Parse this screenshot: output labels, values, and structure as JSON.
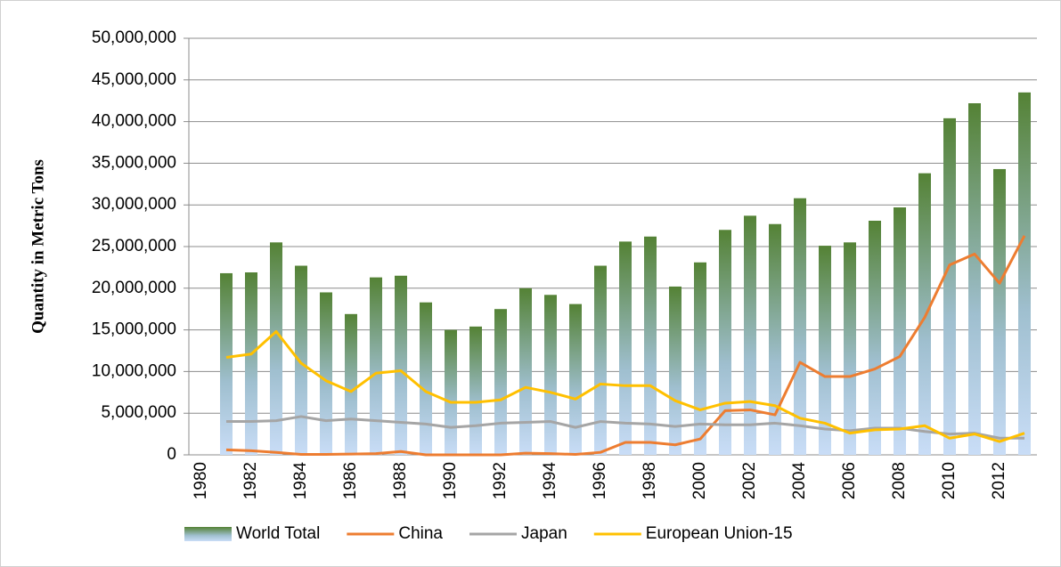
{
  "chart_data": {
    "type": "bar-line",
    "y_label": "Quantity in Metric Tons",
    "categories": [
      "1980",
      null,
      "1982",
      null,
      "1984",
      null,
      "1986",
      null,
      "1988",
      null,
      "1990",
      null,
      "1992",
      null,
      "1994",
      null,
      "1996",
      null,
      "1998",
      null,
      "2000",
      null,
      "2002",
      null,
      "2004",
      null,
      "2006",
      null,
      "2008",
      null,
      "2010",
      null,
      "2012",
      null
    ],
    "ylim": [
      0,
      50000000
    ],
    "yticks": [
      0,
      {
        "value": 5000000,
        "label": "5,000,000"
      },
      {
        "value": 10000000,
        "label": "10,000,000"
      },
      {
        "value": 15000000,
        "label": "15,000,000"
      },
      {
        "value": 20000000,
        "label": "20,000,000"
      },
      {
        "value": 25000000,
        "label": "25,000,000"
      },
      {
        "value": 30000000,
        "label": "30,000,000"
      },
      {
        "value": 35000000,
        "label": "35,000,000"
      },
      {
        "value": 40000000,
        "label": "40,000,000"
      },
      {
        "value": 45000000,
        "label": "45,000,000"
      },
      {
        "value": 50000000,
        "label": "50,000,000"
      }
    ],
    "grid": true,
    "legend": "bottom",
    "series": [
      {
        "name": "World Total",
        "type": "bar",
        "color": "#548235",
        "values": [
          null,
          21800000,
          21900000,
          25500000,
          22700000,
          19500000,
          16900000,
          21300000,
          21500000,
          18300000,
          15000000,
          15400000,
          17500000,
          20000000,
          19200000,
          18100000,
          22700000,
          25600000,
          26200000,
          20200000,
          23100000,
          27000000,
          28700000,
          27700000,
          30800000,
          25100000,
          25500000,
          28100000,
          29700000,
          33800000,
          40400000,
          42200000,
          34300000,
          43500000
        ]
      },
      {
        "name": "China",
        "type": "line",
        "color": "#ed7d31",
        "values": [
          null,
          600000,
          500000,
          300000,
          50000,
          50000,
          100000,
          150000,
          400000,
          0,
          0,
          0,
          0,
          200000,
          150000,
          50000,
          300000,
          1500000,
          1500000,
          1200000,
          1900000,
          5300000,
          5400000,
          4800000,
          11100000,
          9400000,
          9400000,
          10300000,
          11800000,
          16500000,
          22800000,
          24100000,
          20600000,
          26300000
        ]
      },
      {
        "name": "Japan",
        "type": "line",
        "color": "#a5a5a5",
        "values": [
          null,
          4000000,
          4000000,
          4100000,
          4600000,
          4100000,
          4300000,
          4100000,
          3900000,
          3700000,
          3300000,
          3500000,
          3800000,
          3900000,
          4000000,
          3300000,
          4000000,
          3800000,
          3700000,
          3400000,
          3700000,
          3600000,
          3600000,
          3800000,
          3500000,
          3100000,
          2900000,
          3200000,
          3200000,
          2800000,
          2500000,
          2600000,
          2000000,
          2000000
        ]
      },
      {
        "name": "European Union-15",
        "type": "line",
        "color": "#ffc000",
        "values": [
          null,
          11700000,
          12100000,
          14800000,
          11000000,
          8900000,
          7600000,
          9800000,
          10100000,
          7600000,
          6300000,
          6300000,
          6600000,
          8100000,
          7500000,
          6700000,
          8500000,
          8300000,
          8300000,
          6500000,
          5400000,
          6200000,
          6400000,
          5900000,
          4400000,
          3800000,
          2600000,
          3000000,
          3100000,
          3500000,
          2000000,
          2500000,
          1600000,
          2600000
        ]
      }
    ]
  }
}
